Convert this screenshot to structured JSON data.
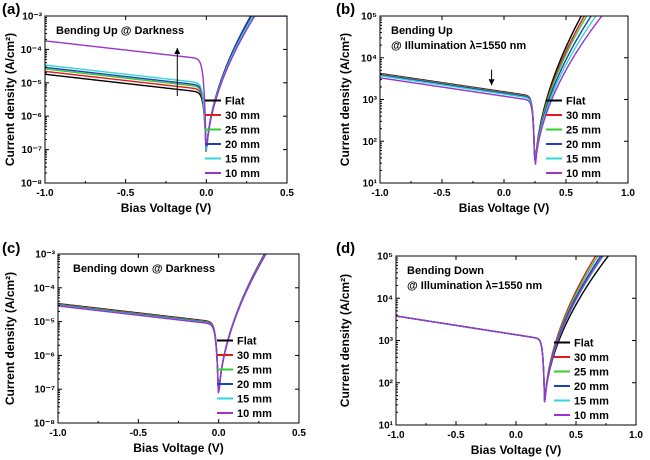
{
  "chart_data": [
    {
      "id": "a",
      "type": "line",
      "panel_label": "(a)",
      "annotation": [
        "Bending Up @ Darkness"
      ],
      "xlabel": "Bias Voltage (V)",
      "ylabel": "Current density (A/cm²)",
      "xlim": [
        -1.0,
        0.5
      ],
      "ylim": [
        1e-08,
        0.001
      ],
      "y_scale": "log",
      "x_ticks": [
        "-1.0",
        "-0.5",
        "0.0",
        "0.5"
      ],
      "x_tick_values": [
        -1.0,
        -0.5,
        0.0,
        0.5
      ],
      "y_ticks": [
        "10⁻⁸",
        "10⁻⁷",
        "10⁻⁶",
        "10⁻⁵",
        "10⁻⁴",
        "10⁻³"
      ],
      "y_tick_values": [
        1e-08,
        1e-07,
        1e-06,
        1e-05,
        0.0001,
        0.001
      ],
      "legend_position": "bottom-right",
      "trend_arrow": {
        "x": -0.18,
        "y_from": 4e-06,
        "y_to": 0.00011,
        "direction": "up"
      },
      "curve_model": {
        "v0": 0.0,
        "log_min": -7.35
      },
      "series": [
        {
          "name": "Flat",
          "color": "#000000",
          "j_rev": 1.8e-05,
          "j_fwd": 0.0016,
          "vf": 0.3
        },
        {
          "name": "30 mm",
          "color": "#e31a1c",
          "j_rev": 2.2e-05,
          "j_fwd": 0.0014,
          "vf": 0.3
        },
        {
          "name": "25 mm",
          "color": "#33cc33",
          "j_rev": 2.6e-05,
          "j_fwd": 0.0013,
          "vf": 0.3
        },
        {
          "name": "20 mm",
          "color": "#1f3fbf",
          "j_rev": 2.9e-05,
          "j_fwd": 0.0015,
          "vf": 0.3
        },
        {
          "name": "15 mm",
          "color": "#33d6d6",
          "j_rev": 3.4e-05,
          "j_fwd": 0.0012,
          "vf": 0.3
        },
        {
          "name": "10 mm",
          "color": "#9933cc",
          "j_rev": 0.00018,
          "j_fwd": 0.001,
          "vf": 0.3
        }
      ]
    },
    {
      "id": "b",
      "type": "line",
      "panel_label": "(b)",
      "annotation": [
        "Bending Up",
        "@ Illumination λ=1550 nm"
      ],
      "xlabel": "Bias Voltage (V)",
      "ylabel": "Current density (A/cm²)",
      "xlim": [
        -1.0,
        1.0
      ],
      "ylim": [
        10,
        100000.0
      ],
      "y_scale": "log",
      "x_ticks": [
        "-1.0",
        "-0.5",
        "0.0",
        "0.5",
        "1.0"
      ],
      "x_tick_values": [
        -1.0,
        -0.5,
        0.0,
        0.5,
        1.0
      ],
      "y_ticks": [
        "10¹",
        "10²",
        "10³",
        "10⁴",
        "10⁵"
      ],
      "y_tick_values": [
        10,
        100,
        1000,
        10000,
        100000
      ],
      "legend_position": "bottom-right",
      "trend_arrow": {
        "x": -0.1,
        "y_from": 5200,
        "y_to": 2200,
        "direction": "down"
      },
      "curve_model": {
        "v0": 0.25,
        "log_min": 1.15
      },
      "series": [
        {
          "name": "Flat",
          "color": "#000000",
          "j_rev": 4200,
          "j_fwd": 140000.0,
          "vf": 0.65
        },
        {
          "name": "30 mm",
          "color": "#e31a1c",
          "j_rev": 4100,
          "j_fwd": 130000.0,
          "vf": 0.67
        },
        {
          "name": "25 mm",
          "color": "#33cc33",
          "j_rev": 4000,
          "j_fwd": 130000.0,
          "vf": 0.69
        },
        {
          "name": "20 mm",
          "color": "#1f3fbf",
          "j_rev": 3900,
          "j_fwd": 120000.0,
          "vf": 0.72
        },
        {
          "name": "15 mm",
          "color": "#33d6d6",
          "j_rev": 3700,
          "j_fwd": 120000.0,
          "vf": 0.76
        },
        {
          "name": "10 mm",
          "color": "#9933cc",
          "j_rev": 3300,
          "j_fwd": 110000.0,
          "vf": 0.8
        }
      ]
    },
    {
      "id": "c",
      "type": "line",
      "panel_label": "(c)",
      "annotation": [
        "Bending down @ Darkness"
      ],
      "xlabel": "Bias Voltage (V)",
      "ylabel": "Current density (A/cm²)",
      "xlim": [
        -1.0,
        0.5
      ],
      "ylim": [
        1e-08,
        0.001
      ],
      "y_scale": "log",
      "x_ticks": [
        "-1.0",
        "-0.5",
        "0.0",
        "0.5"
      ],
      "x_tick_values": [
        -1.0,
        -0.5,
        0.0,
        0.5
      ],
      "y_ticks": [
        "10⁻⁸",
        "10⁻⁷",
        "10⁻⁶",
        "10⁻⁵",
        "10⁻⁴",
        "10⁻³"
      ],
      "y_tick_values": [
        1e-08,
        1e-07,
        1e-06,
        1e-05,
        0.0001,
        0.001
      ],
      "legend_position": "bottom-right",
      "curve_model": {
        "v0": 0.0,
        "log_min": -7.45
      },
      "series": [
        {
          "name": "Flat",
          "color": "#000000",
          "j_rev": 3.4e-05,
          "j_fwd": 0.0013,
          "vf": 0.3
        },
        {
          "name": "30 mm",
          "color": "#e31a1c",
          "j_rev": 3.3e-05,
          "j_fwd": 0.00125,
          "vf": 0.3
        },
        {
          "name": "25 mm",
          "color": "#33cc33",
          "j_rev": 3.2e-05,
          "j_fwd": 0.0012,
          "vf": 0.3
        },
        {
          "name": "20 mm",
          "color": "#1f3fbf",
          "j_rev": 3.1e-05,
          "j_fwd": 0.0012,
          "vf": 0.3
        },
        {
          "name": "15 mm",
          "color": "#33d6d6",
          "j_rev": 3e-05,
          "j_fwd": 0.00115,
          "vf": 0.3
        },
        {
          "name": "10 mm",
          "color": "#9933cc",
          "j_rev": 2.9e-05,
          "j_fwd": 0.0011,
          "vf": 0.3
        }
      ]
    },
    {
      "id": "d",
      "type": "line",
      "panel_label": "(d)",
      "annotation": [
        "Bending Down",
        "@ Illumination λ=1550 nm"
      ],
      "xlabel": "Bias Voltage (V)",
      "ylabel": "Current density (A/cm²)",
      "xlim": [
        -1.0,
        1.0
      ],
      "ylim": [
        10,
        100000.0
      ],
      "y_scale": "log",
      "x_ticks": [
        "-1.0",
        "-0.5",
        "0.0",
        "0.5",
        "1.0"
      ],
      "x_tick_values": [
        -1.0,
        -0.5,
        0.0,
        0.5,
        1.0
      ],
      "y_ticks": [
        "10¹",
        "10²",
        "10³",
        "10⁴",
        "10⁵"
      ],
      "y_tick_values": [
        10,
        100,
        1000,
        10000,
        100000
      ],
      "legend_position": "bottom-right",
      "curve_model": {
        "v0": 0.24,
        "log_min": 1.35
      },
      "series": [
        {
          "name": "Flat",
          "color": "#000000",
          "j_rev": 3800,
          "j_fwd": 110000.0,
          "vf": 0.78
        },
        {
          "name": "30 mm",
          "color": "#e31a1c",
          "j_rev": 3800,
          "j_fwd": 120000.0,
          "vf": 0.68
        },
        {
          "name": "25 mm",
          "color": "#33cc33",
          "j_rev": 3800,
          "j_fwd": 120000.0,
          "vf": 0.7
        },
        {
          "name": "20 mm",
          "color": "#1f3fbf",
          "j_rev": 3800,
          "j_fwd": 115000.0,
          "vf": 0.72
        },
        {
          "name": "15 mm",
          "color": "#33d6d6",
          "j_rev": 3800,
          "j_fwd": 110000.0,
          "vf": 0.74
        },
        {
          "name": "10 mm",
          "color": "#9933cc",
          "j_rev": 3800,
          "j_fwd": 110000.0,
          "vf": 0.73
        }
      ]
    }
  ]
}
